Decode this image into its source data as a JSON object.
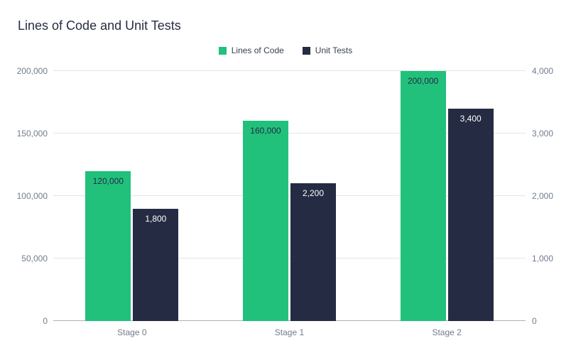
{
  "chart_data": {
    "type": "bar",
    "title": "Lines of Code and Unit Tests",
    "categories": [
      "Stage 0",
      "Stage 1",
      "Stage 2"
    ],
    "series": [
      {
        "name": "Lines of Code",
        "axis": "left",
        "color": "#21c17c",
        "values": [
          120000,
          160000,
          200000
        ],
        "labels": [
          "120,000",
          "160,000",
          "200,000"
        ],
        "label_color": "#252b42"
      },
      {
        "name": "Unit Tests",
        "axis": "right",
        "color": "#252b42",
        "values": [
          1800,
          2200,
          3400
        ],
        "labels": [
          "1,800",
          "2,200",
          "3,400"
        ],
        "label_color": "#ffffff"
      }
    ],
    "left_axis": {
      "min": 0,
      "max": 200000,
      "ticks": [
        "0",
        "50,000",
        "100,000",
        "150,000",
        "200,000"
      ]
    },
    "right_axis": {
      "min": 0,
      "max": 4000,
      "ticks": [
        "0",
        "1,000",
        "2,000",
        "3,000",
        "4,000"
      ]
    },
    "grid": true,
    "legend_position": "top",
    "background": "#ffffff"
  }
}
